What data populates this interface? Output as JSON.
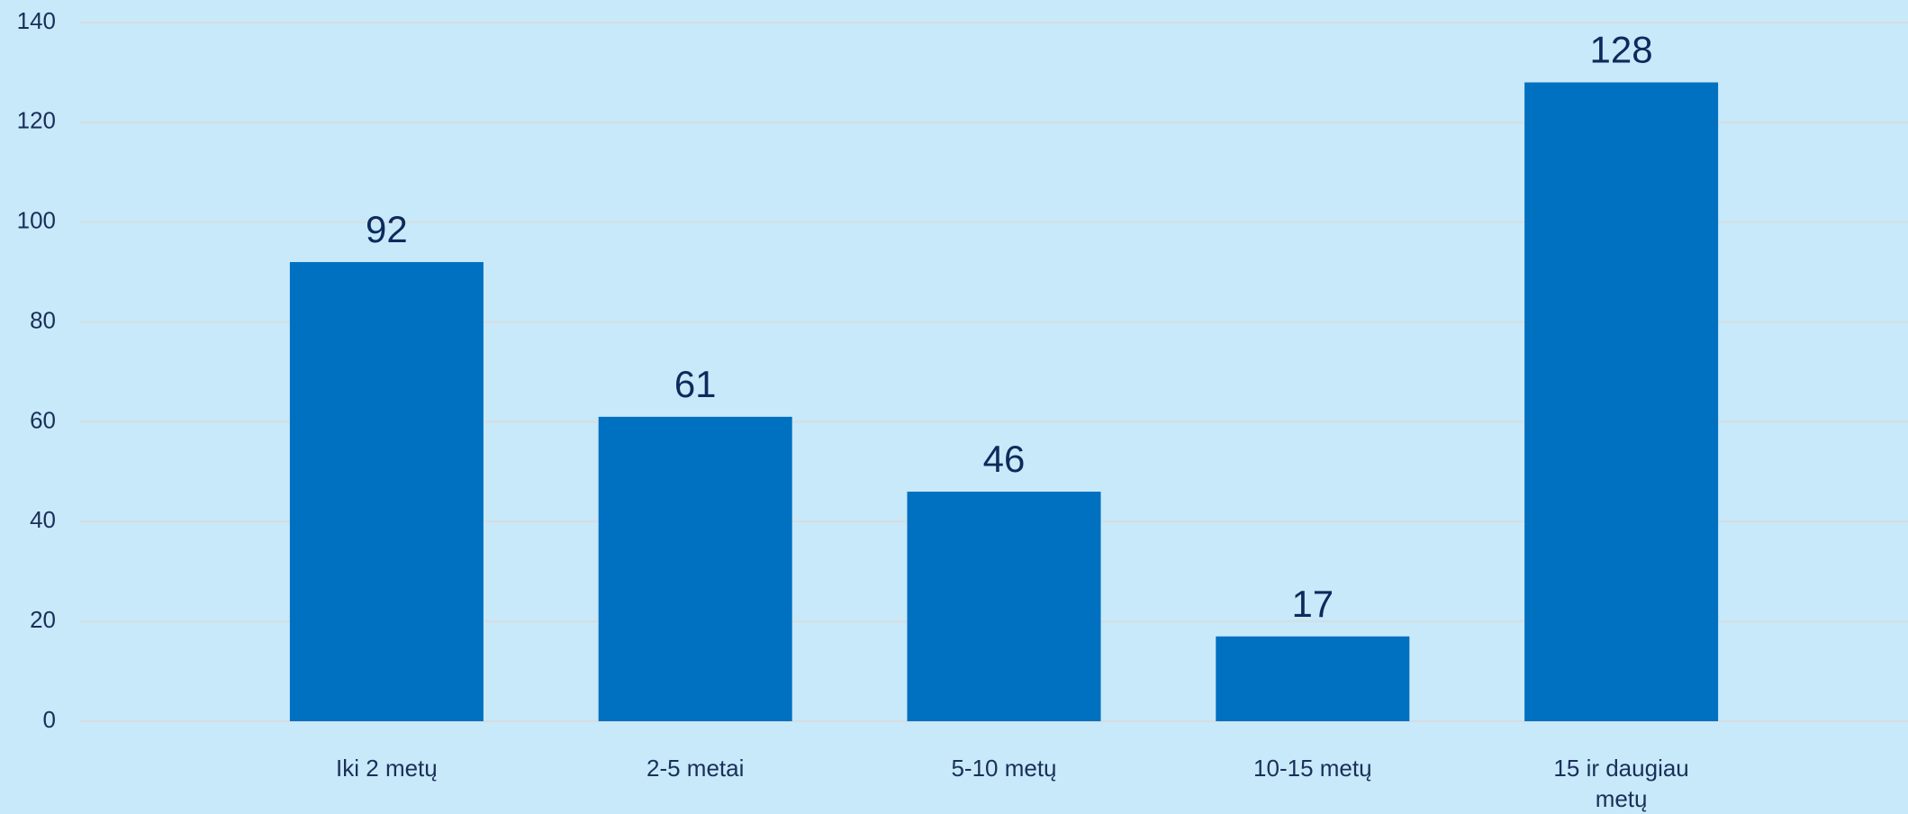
{
  "chart_data": {
    "type": "bar",
    "categories": [
      "Iki 2 metų",
      "2-5 metai",
      "5-10 metų",
      "10-15 metų",
      "15 ir daugiau metų"
    ],
    "category_lines": [
      [
        "Iki 2 metų"
      ],
      [
        "2-5 metai"
      ],
      [
        "5-10 metų"
      ],
      [
        "10-15 metų"
      ],
      [
        "15 ir daugiau",
        "metų"
      ]
    ],
    "values": [
      92,
      61,
      46,
      17,
      128
    ],
    "data_labels": [
      "92",
      "61",
      "46",
      "17",
      "128"
    ],
    "yticks": [
      0,
      20,
      40,
      60,
      80,
      100,
      120,
      140
    ],
    "ylim": [
      0,
      140
    ],
    "grid": true,
    "legend": "none",
    "colors": {
      "background": "#c7e9f9",
      "bar": "#0070c0",
      "gridline": "#d6dde2",
      "tick_text": "#1a2f5a",
      "label_text": "#0d2a5c"
    }
  }
}
